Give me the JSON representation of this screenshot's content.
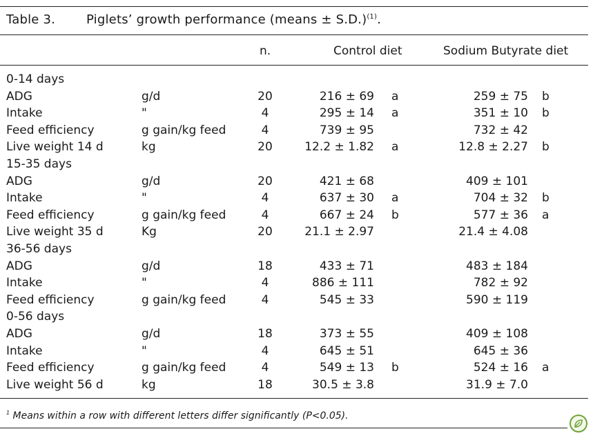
{
  "caption": {
    "label": "Table 3.",
    "title": "Piglets’ growth performance (means ± S.D.)",
    "title_sup": "(1)",
    "title_end": "."
  },
  "headers": {
    "n": "n.",
    "control": "Control diet",
    "sodium_butyrate": "Sodium Butyrate diet"
  },
  "rows": [
    {
      "label": "0-14 days",
      "unit": "",
      "n": "",
      "control": "",
      "control_letter": "",
      "sb": "",
      "sb_letter": ""
    },
    {
      "label": "ADG",
      "unit": "g/d",
      "n": "20",
      "control": "216 ± 69",
      "control_letter": "a",
      "sb": "259 ± 75",
      "sb_letter": "b"
    },
    {
      "label": "Intake",
      "unit": "\"",
      "n": "4",
      "control": "295 ± 14",
      "control_letter": "a",
      "sb": "351 ± 10",
      "sb_letter": "b"
    },
    {
      "label": "Feed efficiency",
      "unit": "g gain/kg feed",
      "n": "4",
      "control": "739 ± 95",
      "control_letter": "",
      "sb": "732 ± 42",
      "sb_letter": ""
    },
    {
      "label": "Live weight 14 d",
      "unit": "kg",
      "n": "20",
      "control": "12.2 ± 1.82",
      "control_letter": "a",
      "sb": "12.8 ± 2.27",
      "sb_letter": "b"
    },
    {
      "label": "15-35 days",
      "unit": "",
      "n": "",
      "control": "",
      "control_letter": "",
      "sb": "",
      "sb_letter": ""
    },
    {
      "label": "ADG",
      "unit": "g/d",
      "n": "20",
      "control": "421 ± 68",
      "control_letter": "",
      "sb": "409 ± 101",
      "sb_letter": ""
    },
    {
      "label": "Intake",
      "unit": "\"",
      "n": "4",
      "control": "637 ± 30",
      "control_letter": "a",
      "sb": "704 ± 32",
      "sb_letter": "b"
    },
    {
      "label": "Feed efficiency",
      "unit": "g gain/kg feed",
      "n": "4",
      "control": "667 ± 24",
      "control_letter": "b",
      "sb": "577 ± 36",
      "sb_letter": "a"
    },
    {
      "label": "Live weight 35 d",
      "unit": "Kg",
      "n": "20",
      "control": "21.1 ± 2.97",
      "control_letter": "",
      "sb": "21.4 ± 4.08",
      "sb_letter": ""
    },
    {
      "label": "36-56 days",
      "unit": "",
      "n": "",
      "control": "",
      "control_letter": "",
      "sb": "",
      "sb_letter": ""
    },
    {
      "label": "ADG",
      "unit": "g/d",
      "n": "18",
      "control": "433 ± 71",
      "control_letter": "",
      "sb": "483 ± 184",
      "sb_letter": ""
    },
    {
      "label": "Intake",
      "unit": "\"",
      "n": "4",
      "control": "886 ± 111",
      "control_letter": "",
      "sb": "782 ± 92",
      "sb_letter": ""
    },
    {
      "label": "Feed efficiency",
      "unit": "g gain/kg feed",
      "n": "4",
      "control": "545 ± 33",
      "control_letter": "",
      "sb": "590 ± 119",
      "sb_letter": ""
    },
    {
      "label": "0-56 days",
      "unit": "",
      "n": "",
      "control": "",
      "control_letter": "",
      "sb": "",
      "sb_letter": ""
    },
    {
      "label": "ADG",
      "unit": "g/d",
      "n": "18",
      "control": "373 ± 55",
      "control_letter": "",
      "sb": "409 ± 108",
      "sb_letter": ""
    },
    {
      "label": "Intake",
      "unit": "\"",
      "n": "4",
      "control": "645 ± 51",
      "control_letter": "",
      "sb": "645 ± 36",
      "sb_letter": ""
    },
    {
      "label": "Feed efficiency",
      "unit": "g gain/kg feed",
      "n": "4",
      "control": "549 ± 13",
      "control_letter": "b",
      "sb": "524 ± 16",
      "sb_letter": "a"
    },
    {
      "label": "Live weight 56 d",
      "unit": "kg",
      "n": "18",
      "control": "30.5 ± 3.8",
      "control_letter": "",
      "sb": "31.9 ± 7.0",
      "sb_letter": ""
    }
  ],
  "footnote": {
    "sup": "1",
    "text": " Means within a row with different letters differ significantly (P<0.05)."
  },
  "logo": {
    "icon": "leaf-logo-icon",
    "color": "#6fa33a"
  }
}
